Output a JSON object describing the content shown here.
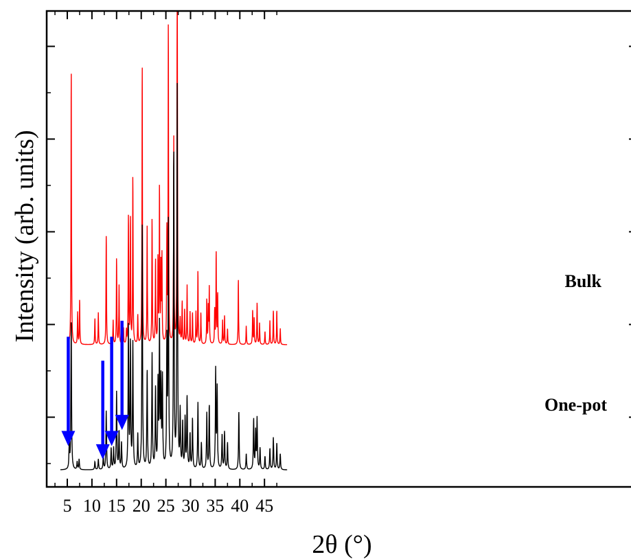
{
  "chart_data": {
    "type": "line",
    "xlabel": "2θ (°)",
    "ylabel": "Intensity (arb. units)",
    "xlim": [
      3.5,
      49
    ],
    "x_ticks": [
      "5",
      "10",
      "15",
      "20",
      "25",
      "30",
      "35",
      "40",
      "45"
    ],
    "y_tick_labels_shown": false,
    "grid": false,
    "series": [
      {
        "name": "Bulk",
        "color": "#ff0000",
        "baseline": 0.5,
        "peaks": [
          [
            5.8,
            1.05
          ],
          [
            7.1,
            0.12
          ],
          [
            7.5,
            0.17
          ],
          [
            10.6,
            0.1
          ],
          [
            11.3,
            0.12
          ],
          [
            12.9,
            0.42
          ],
          [
            14.3,
            0.09
          ],
          [
            15.0,
            0.33
          ],
          [
            15.5,
            0.22
          ],
          [
            16.4,
            0.06
          ],
          [
            17.0,
            0.05
          ],
          [
            17.4,
            0.49
          ],
          [
            17.8,
            0.48
          ],
          [
            18.3,
            0.64
          ],
          [
            19.3,
            0.11
          ],
          [
            20.2,
            1.07
          ],
          [
            21.2,
            0.44
          ],
          [
            22.2,
            0.48
          ],
          [
            22.9,
            0.32
          ],
          [
            23.4,
            0.32
          ],
          [
            23.7,
            0.59
          ],
          [
            24.0,
            0.29
          ],
          [
            24.2,
            0.32
          ],
          [
            25.2,
            0.43
          ],
          [
            25.5,
            1.22
          ],
          [
            26.6,
            0.77
          ],
          [
            27.3,
            1.65
          ],
          [
            27.9,
            0.09
          ],
          [
            28.3,
            0.16
          ],
          [
            28.8,
            0.13
          ],
          [
            29.3,
            0.22
          ],
          [
            29.9,
            0.12
          ],
          [
            30.4,
            0.12
          ],
          [
            31.1,
            0.12
          ],
          [
            31.5,
            0.28
          ],
          [
            32.1,
            0.12
          ],
          [
            33.3,
            0.17
          ],
          [
            33.6,
            0.14
          ],
          [
            33.8,
            0.21
          ],
          [
            34.9,
            0.13
          ],
          [
            35.2,
            0.35
          ],
          [
            35.5,
            0.19
          ],
          [
            36.5,
            0.09
          ],
          [
            36.9,
            0.11
          ],
          [
            37.5,
            0.06
          ],
          [
            39.7,
            0.25
          ],
          [
            41.3,
            0.07
          ],
          [
            42.6,
            0.13
          ],
          [
            42.9,
            0.1
          ],
          [
            43.5,
            0.16
          ],
          [
            44.0,
            0.08
          ],
          [
            45.1,
            0.05
          ],
          [
            46.1,
            0.09
          ],
          [
            46.8,
            0.13
          ],
          [
            47.5,
            0.13
          ],
          [
            48.2,
            0.06
          ]
        ]
      },
      {
        "name": "One-pot",
        "color": "#000000",
        "baseline": 0.03,
        "peaks": [
          [
            5.4,
            0.09
          ],
          [
            5.8,
            0.56
          ],
          [
            7.0,
            0.03
          ],
          [
            7.4,
            0.04
          ],
          [
            10.6,
            0.03
          ],
          [
            11.3,
            0.04
          ],
          [
            12.3,
            0.05
          ],
          [
            12.9,
            0.22
          ],
          [
            13.9,
            0.08
          ],
          [
            14.4,
            0.08
          ],
          [
            15.0,
            0.29
          ],
          [
            15.5,
            0.14
          ],
          [
            16.0,
            0.1
          ],
          [
            17.4,
            0.53
          ],
          [
            17.8,
            0.47
          ],
          [
            18.3,
            0.47
          ],
          [
            19.3,
            0.13
          ],
          [
            20.2,
            0.93
          ],
          [
            21.2,
            0.37
          ],
          [
            22.2,
            0.43
          ],
          [
            22.9,
            0.3
          ],
          [
            23.4,
            0.31
          ],
          [
            23.7,
            0.52
          ],
          [
            24.0,
            0.31
          ],
          [
            24.3,
            0.33
          ],
          [
            25.2,
            0.46
          ],
          [
            25.5,
            0.91
          ],
          [
            26.6,
            1.19
          ],
          [
            27.3,
            1.43
          ],
          [
            27.9,
            0.21
          ],
          [
            28.4,
            0.17
          ],
          [
            28.9,
            0.19
          ],
          [
            29.3,
            0.27
          ],
          [
            29.9,
            0.13
          ],
          [
            30.4,
            0.19
          ],
          [
            31.5,
            0.25
          ],
          [
            32.2,
            0.1
          ],
          [
            33.3,
            0.21
          ],
          [
            33.8,
            0.24
          ],
          [
            35.1,
            0.37
          ],
          [
            35.4,
            0.3
          ],
          [
            36.4,
            0.13
          ],
          [
            36.9,
            0.14
          ],
          [
            37.5,
            0.1
          ],
          [
            39.8,
            0.22
          ],
          [
            41.3,
            0.06
          ],
          [
            42.8,
            0.19
          ],
          [
            43.2,
            0.14
          ],
          [
            43.5,
            0.19
          ],
          [
            44.1,
            0.08
          ],
          [
            45.1,
            0.05
          ],
          [
            46.1,
            0.08
          ],
          [
            46.8,
            0.12
          ],
          [
            47.5,
            0.1
          ],
          [
            48.2,
            0.06
          ]
        ]
      }
    ],
    "annotations": [
      {
        "type": "arrow",
        "color": "#0000ff",
        "x": 5.2,
        "y_tip": 0.12,
        "y_tail": 0.53
      },
      {
        "type": "arrow",
        "color": "#0000ff",
        "x": 12.2,
        "y_tip": 0.07,
        "y_tail": 0.44
      },
      {
        "type": "arrow",
        "color": "#0000ff",
        "x": 14.0,
        "y_tip": 0.12,
        "y_tail": 0.53
      },
      {
        "type": "arrow",
        "color": "#0000ff",
        "x": 16.1,
        "y_tip": 0.18,
        "y_tail": 0.59
      }
    ]
  }
}
